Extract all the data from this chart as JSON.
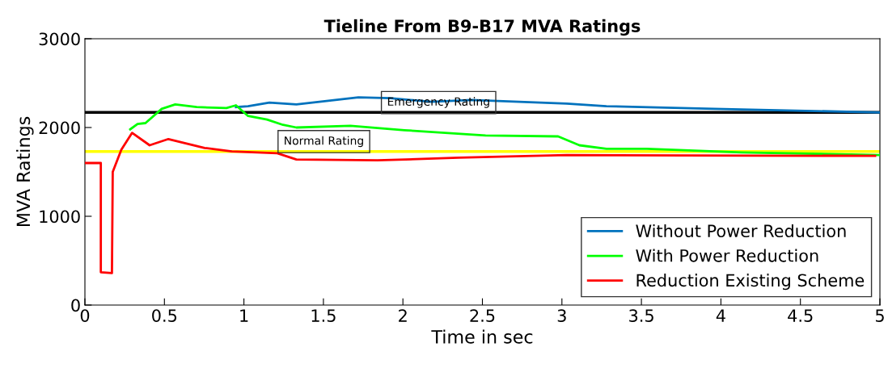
{
  "chart_data": {
    "type": "line",
    "title": "Tieline From B9-B17 MVA Ratings",
    "xlabel": "Time in sec",
    "ylabel": "MVA Ratings",
    "xlim": [
      0,
      5
    ],
    "xticks": [
      0,
      0.5,
      1,
      1.5,
      2,
      2.5,
      3,
      3.5,
      4,
      4.5,
      5
    ],
    "ylim": [
      0,
      3000
    ],
    "yticks": [
      0,
      1000,
      2000,
      3000
    ],
    "grid": false,
    "legend": "bottom right",
    "marker": "none",
    "line_style": "solid",
    "series": [
      {
        "name": "Without Power Reduction",
        "color": "#0072bd",
        "x": [
          0.95,
          1.026,
          1.16,
          1.33,
          1.72,
          1.92,
          2.18,
          2.43,
          3.03,
          3.28,
          3.96,
          5
        ],
        "values": [
          2230,
          2240,
          2280,
          2260,
          2340,
          2330,
          2290,
          2310,
          2270,
          2240,
          2210,
          2170
        ]
      },
      {
        "name": "With Power Reduction",
        "color": "#00ff00",
        "x": [
          0.285,
          0.331,
          0.381,
          0.483,
          0.568,
          0.703,
          0.89,
          0.95,
          1.026,
          1.145,
          1.246,
          1.33,
          1.67,
          2.01,
          2.52,
          2.976,
          3.11,
          3.28,
          3.535,
          4.13,
          5
        ],
        "values": [
          1980,
          2040,
          2050,
          2210,
          2260,
          2230,
          2220,
          2250,
          2130,
          2090,
          2030,
          2000,
          2020,
          1970,
          1910,
          1900,
          1800,
          1760,
          1760,
          1720,
          1690
        ]
      },
      {
        "name": "Reduction Existing Scheme",
        "color": "#ff0000",
        "x": [
          0,
          0.1,
          0.1,
          0.17,
          0.175,
          0.229,
          0.297,
          0.407,
          0.525,
          0.753,
          0.924,
          1.21,
          1.33,
          1.84,
          2.35,
          3.03,
          4.97
        ],
        "values": [
          1600,
          1600,
          370,
          360,
          1500,
          1750,
          1940,
          1800,
          1870,
          1770,
          1730,
          1710,
          1640,
          1630,
          1660,
          1690,
          1680
        ]
      }
    ],
    "ref_lines": [
      {
        "axis": "y",
        "value": 2170,
        "label": "Emergency Rating",
        "color": "#000000"
      },
      {
        "axis": "y",
        "value": 1730,
        "label": "Normal Rating",
        "color": "#ffff00"
      }
    ]
  }
}
